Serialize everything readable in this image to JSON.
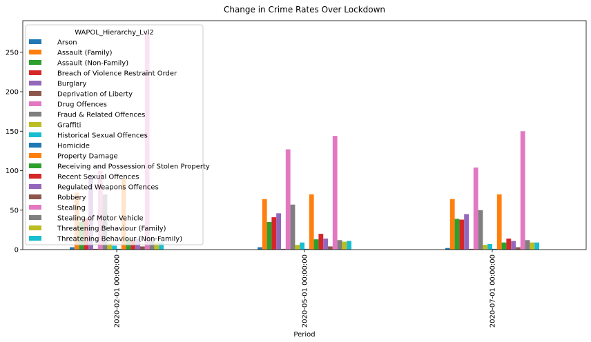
{
  "chart_data": {
    "type": "bar",
    "title": "Change in Crime Rates Over Lockdown",
    "xlabel": "Period",
    "ylabel": "",
    "ylim": [
      0,
      290
    ],
    "yticks": [
      0,
      50,
      100,
      150,
      200,
      250
    ],
    "grid": false,
    "legend_title": "WAPOL_Hierarchy_Lvl2",
    "legend_position": "top-left",
    "categories": [
      "2020-02-01 00:00:00",
      "2020-05-01 00:00:00",
      "2020-07-01 00:00:00"
    ],
    "series": [
      {
        "name": "Arson",
        "color": "#1f77b4",
        "values": [
          3,
          3,
          2
        ]
      },
      {
        "name": "Assault (Family)",
        "color": "#ff7f0e",
        "values": [
          72,
          64,
          64
        ]
      },
      {
        "name": "Assault (Non-Family)",
        "color": "#2ca02c",
        "values": [
          35,
          35,
          39
        ]
      },
      {
        "name": "Breach of Violence Restraint Order",
        "color": "#d62728",
        "values": [
          40,
          41,
          38
        ]
      },
      {
        "name": "Burglary",
        "color": "#9467bd",
        "values": [
          95,
          46,
          45
        ]
      },
      {
        "name": "Deprivation of Liberty",
        "color": "#8c564b",
        "values": [
          1,
          1,
          1
        ]
      },
      {
        "name": "Drug Offences",
        "color": "#e377c2",
        "values": [
          100,
          127,
          104
        ]
      },
      {
        "name": "Fraud & Related Offences",
        "color": "#7f7f7f",
        "values": [
          70,
          57,
          50
        ]
      },
      {
        "name": "Graffiti",
        "color": "#bcbd22",
        "values": [
          8,
          6,
          6
        ]
      },
      {
        "name": "Historical Sexual Offences",
        "color": "#17becf",
        "values": [
          5,
          9,
          7
        ]
      },
      {
        "name": "Homicide",
        "color": "#1f77b4",
        "values": [
          1,
          1,
          1
        ]
      },
      {
        "name": "Property Damage",
        "color": "#ff7f0e",
        "values": [
          90,
          70,
          70
        ]
      },
      {
        "name": "Receiving and Possession of Stolen Property",
        "color": "#2ca02c",
        "values": [
          14,
          13,
          9
        ]
      },
      {
        "name": "Recent Sexual Offences",
        "color": "#d62728",
        "values": [
          12,
          20,
          14
        ]
      },
      {
        "name": "Regulated Weapons Offences",
        "color": "#9467bd",
        "values": [
          14,
          14,
          11
        ]
      },
      {
        "name": "Robbery",
        "color": "#8c564b",
        "values": [
          4,
          4,
          3
        ]
      },
      {
        "name": "Stealing",
        "color": "#e377c2",
        "values": [
          275,
          144,
          150
        ]
      },
      {
        "name": "Stealing of Motor Vehicle",
        "color": "#7f7f7f",
        "values": [
          13,
          12,
          12
        ]
      },
      {
        "name": "Threatening Behaviour (Family)",
        "color": "#bcbd22",
        "values": [
          9,
          10,
          9
        ]
      },
      {
        "name": "Threatening Behaviour (Non-Family)",
        "color": "#17becf",
        "values": [
          9,
          11,
          9
        ]
      }
    ]
  }
}
